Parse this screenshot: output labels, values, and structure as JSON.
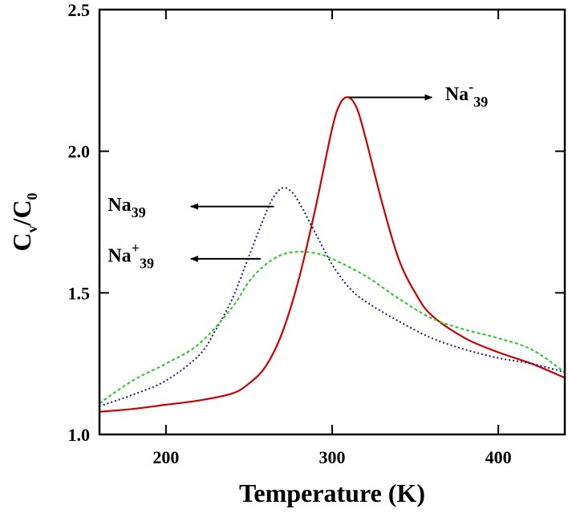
{
  "chart_data": {
    "type": "line",
    "title": "",
    "xlabel": "Temperature (K)",
    "ylabel_main": "C",
    "ylabel_sub1": "v",
    "ylabel_sep": "/C",
    "ylabel_sub2": "0",
    "xlim": [
      160,
      440
    ],
    "ylim": [
      1.0,
      2.5
    ],
    "x_ticks": [
      200,
      300,
      400
    ],
    "x_tick_labels": [
      "200",
      "300",
      "400"
    ],
    "y_ticks": [
      1.0,
      1.5,
      2.0,
      2.5
    ],
    "y_tick_labels": [
      "1.0",
      "1.5",
      "2.0",
      "2.5"
    ],
    "grid": false,
    "series": [
      {
        "name": "Na-39",
        "color": "#cc0000",
        "style": "solid",
        "x": [
          160,
          180,
          200,
          220,
          240,
          250,
          260,
          270,
          280,
          290,
          300,
          305,
          310,
          315,
          320,
          330,
          340,
          350,
          360,
          380,
          400,
          420,
          440
        ],
        "y": [
          1.08,
          1.09,
          1.105,
          1.12,
          1.145,
          1.18,
          1.24,
          1.36,
          1.55,
          1.8,
          2.08,
          2.17,
          2.19,
          2.15,
          2.05,
          1.82,
          1.62,
          1.5,
          1.42,
          1.34,
          1.29,
          1.25,
          1.2
        ]
      },
      {
        "name": "Na39",
        "color": "#1a1a80",
        "style": "dotted",
        "x": [
          160,
          180,
          200,
          220,
          230,
          240,
          250,
          260,
          265,
          270,
          275,
          280,
          290,
          300,
          310,
          320,
          340,
          360,
          380,
          400,
          420,
          440
        ],
        "y": [
          1.1,
          1.14,
          1.19,
          1.28,
          1.37,
          1.48,
          1.63,
          1.78,
          1.84,
          1.87,
          1.86,
          1.82,
          1.71,
          1.6,
          1.52,
          1.47,
          1.4,
          1.34,
          1.3,
          1.27,
          1.25,
          1.22
        ]
      },
      {
        "name": "Na+39",
        "color": "#22cc22",
        "style": "dashed",
        "x": [
          160,
          180,
          200,
          220,
          240,
          250,
          260,
          270,
          280,
          290,
          300,
          320,
          340,
          360,
          380,
          400,
          420,
          440
        ],
        "y": [
          1.11,
          1.19,
          1.25,
          1.32,
          1.45,
          1.54,
          1.6,
          1.635,
          1.645,
          1.64,
          1.62,
          1.56,
          1.48,
          1.41,
          1.37,
          1.34,
          1.3,
          1.22
        ]
      }
    ],
    "annotations": [
      {
        "name": "Na-39",
        "base": "Na",
        "sup": "-",
        "sub": "39",
        "direction": "right",
        "from": [
          310,
          2.19
        ],
        "to": [
          360,
          2.19
        ],
        "label_at": [
          368,
          2.18
        ]
      },
      {
        "name": "Na39",
        "base": "Na",
        "sup": "",
        "sub": "39",
        "direction": "left",
        "from": [
          265,
          1.805
        ],
        "to": [
          215,
          1.805
        ],
        "label_at": [
          165,
          1.79
        ]
      },
      {
        "name": "Na+39",
        "base": "Na",
        "sup": "+",
        "sub": "39",
        "direction": "left",
        "from": [
          257,
          1.62
        ],
        "to": [
          215,
          1.62
        ],
        "label_at": [
          165,
          1.61
        ]
      }
    ]
  }
}
